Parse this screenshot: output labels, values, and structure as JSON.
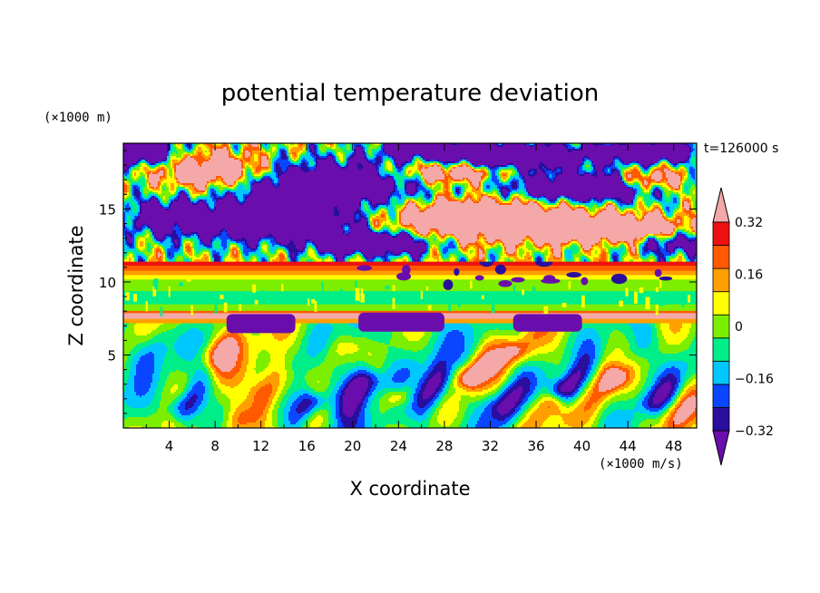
{
  "chart_data": {
    "type": "heatmap",
    "title": "potential temperature deviation",
    "xlabel": "X coordinate",
    "ylabel": "Z coordinate",
    "x_unit": "(×1000 m/s)",
    "y_unit": "(×1000 m)",
    "time_label": "t=126000 s",
    "xlim": [
      0,
      50
    ],
    "ylim": [
      0,
      19.5
    ],
    "x_ticks": [
      4,
      8,
      12,
      16,
      20,
      24,
      28,
      32,
      36,
      40,
      44,
      48
    ],
    "y_ticks": [
      5,
      10,
      15
    ],
    "colorbar": {
      "levels": [
        -0.4,
        -0.32,
        -0.24,
        -0.16,
        -0.08,
        0,
        0.08,
        0.16,
        0.24,
        0.32,
        0.4
      ],
      "labels": [
        {
          "value": -0.32,
          "text": "−0.32"
        },
        {
          "value": -0.16,
          "text": "−0.16"
        },
        {
          "value": 0,
          "text": "0"
        },
        {
          "value": 0.16,
          "text": "0.16"
        },
        {
          "value": 0.32,
          "text": "0.32"
        }
      ],
      "colors": [
        "#6a0dad",
        "#2a0e9e",
        "#0a46ff",
        "#00c8ff",
        "#00ee88",
        "#7cee00",
        "#ffff00",
        "#ffa000",
        "#ff5a00",
        "#ee1010",
        "#f4a8a8"
      ],
      "extend": "both"
    },
    "layers": [
      {
        "z_range": [
          0,
          7.2
        ],
        "description": "gravity wave pattern"
      },
      {
        "z_range": [
          7.2,
          11.5
        ],
        "description": "banded"
      },
      {
        "z_range": [
          11.5,
          19.5
        ],
        "description": "turbulent upper layer"
      }
    ]
  }
}
